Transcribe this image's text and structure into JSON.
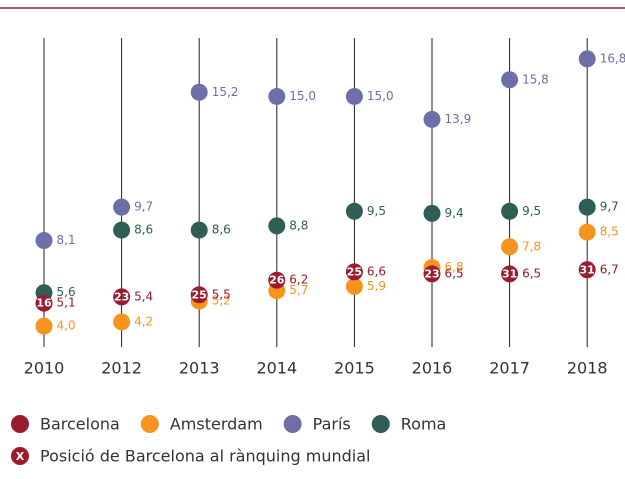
{
  "chart_data": {
    "type": "dot",
    "categories": [
      "2010",
      "2012",
      "2013",
      "2014",
      "2015",
      "2016",
      "2017",
      "2018"
    ],
    "ylim": [
      3,
      17.8
    ],
    "series": [
      {
        "name": "Amsterdam",
        "color": "#f7941d",
        "values": [
          4.0,
          4.2,
          5.2,
          5.7,
          5.9,
          6.8,
          7.8,
          8.5
        ],
        "value_labels": [
          "4,0",
          "4,2",
          "5,2",
          "5,7",
          "5,9",
          "6,8",
          "7,8",
          "8,5"
        ]
      },
      {
        "name": "París",
        "color": "#6e6ea8",
        "values": [
          8.1,
          9.7,
          15.2,
          15.0,
          15.0,
          13.9,
          15.8,
          16.8
        ],
        "value_labels": [
          "8,1",
          "9,7",
          "15,2",
          "15,0",
          "15,0",
          "13,9",
          "15,8",
          "16,8"
        ]
      },
      {
        "name": "Roma",
        "color": "#2e5e55",
        "values": [
          5.6,
          8.6,
          8.6,
          8.8,
          9.5,
          9.4,
          9.5,
          9.7
        ],
        "value_labels": [
          "5,6",
          "8,6",
          "8,6",
          "8,8",
          "9,5",
          "9,4",
          "9,5",
          "9,7"
        ]
      },
      {
        "name": "Barcelona",
        "color": "#9b1b30",
        "values": [
          5.1,
          5.4,
          5.5,
          6.2,
          6.6,
          6.5,
          6.5,
          6.7
        ],
        "value_labels": [
          "5,1",
          "5,4",
          "5,5",
          "6,2",
          "6,6",
          "6,5",
          "6,5",
          "6,7"
        ],
        "ranks": [
          16,
          23,
          25,
          26,
          25,
          23,
          31,
          31
        ]
      }
    ],
    "legend_order": [
      3,
      0,
      1,
      2
    ],
    "note_marker": "X",
    "note": "Posició de Barcelona al rànquing mundial"
  }
}
